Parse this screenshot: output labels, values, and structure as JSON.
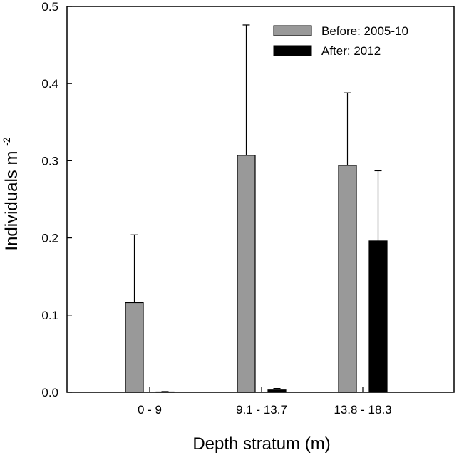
{
  "chart_data": {
    "type": "bar",
    "xlabel": "Depth stratum (m)",
    "ylabel": {
      "text": "Individuals m",
      "superscript": "-2"
    },
    "categories": [
      "0 - 9",
      "9.1 - 13.7",
      "13.8 - 18.3"
    ],
    "series": [
      {
        "name": "Before: 2005-10",
        "color": "#999999",
        "values": [
          0.116,
          0.307,
          0.294
        ],
        "error_upper": [
          0.204,
          0.476,
          0.388
        ]
      },
      {
        "name": "After: 2012",
        "color": "#000000",
        "values": [
          0.0,
          0.003,
          0.196
        ],
        "error_upper": [
          0.001,
          0.005,
          0.287
        ]
      }
    ],
    "ylim": [
      0,
      0.5
    ],
    "yticks": [
      "0.0",
      "0.1",
      "0.2",
      "0.3",
      "0.4",
      "0.5"
    ],
    "grid": false,
    "legend_position": "top-right"
  }
}
